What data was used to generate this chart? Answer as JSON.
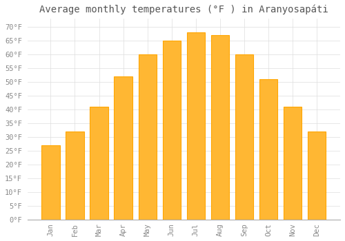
{
  "title": "Average monthly temperatures (°F ) in Aranyosapáti",
  "months": [
    "Jan",
    "Feb",
    "Mar",
    "Apr",
    "May",
    "Jun",
    "Jul",
    "Aug",
    "Sep",
    "Oct",
    "Nov",
    "Dec"
  ],
  "values": [
    27,
    32,
    41,
    52,
    60,
    65,
    68,
    67,
    60,
    51,
    41,
    32
  ],
  "bar_color": "#FFA500",
  "bar_face_color": "#FFB733",
  "background_color": "#FFFFFF",
  "grid_color": "#DDDDDD",
  "ylim": [
    0,
    73
  ],
  "yticks": [
    0,
    5,
    10,
    15,
    20,
    25,
    30,
    35,
    40,
    45,
    50,
    55,
    60,
    65,
    70
  ],
  "title_fontsize": 10,
  "tick_fontsize": 7.5,
  "title_color": "#555555",
  "tick_color": "#888888"
}
